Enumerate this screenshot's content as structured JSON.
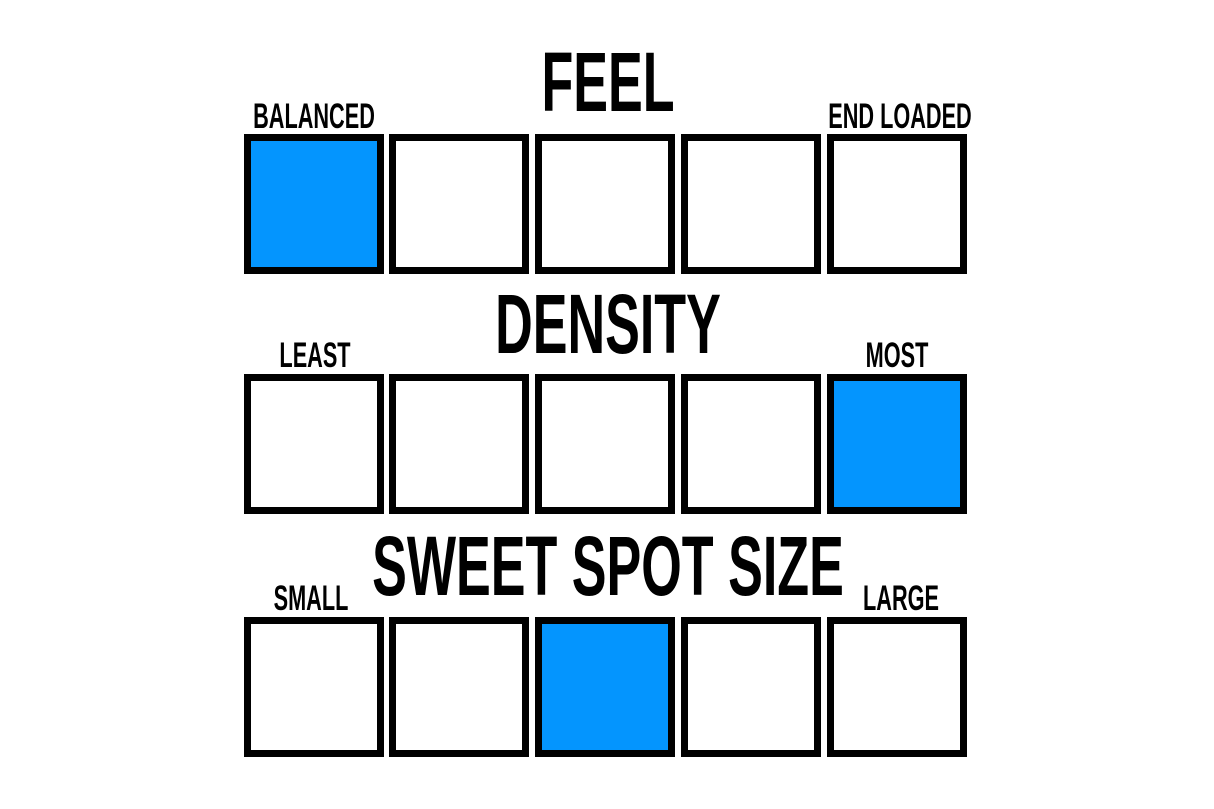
{
  "accent_color": "#0495FE",
  "scales": [
    {
      "title": "FEEL",
      "left_label": "BALANCED",
      "right_label": "END LOADED",
      "steps": 5,
      "selected": 1
    },
    {
      "title": "DENSITY",
      "left_label": "LEAST",
      "right_label": "MOST",
      "steps": 5,
      "selected": 5
    },
    {
      "title": "SWEET SPOT SIZE",
      "left_label": "SMALL",
      "right_label": "LARGE",
      "steps": 5,
      "selected": 3
    }
  ]
}
